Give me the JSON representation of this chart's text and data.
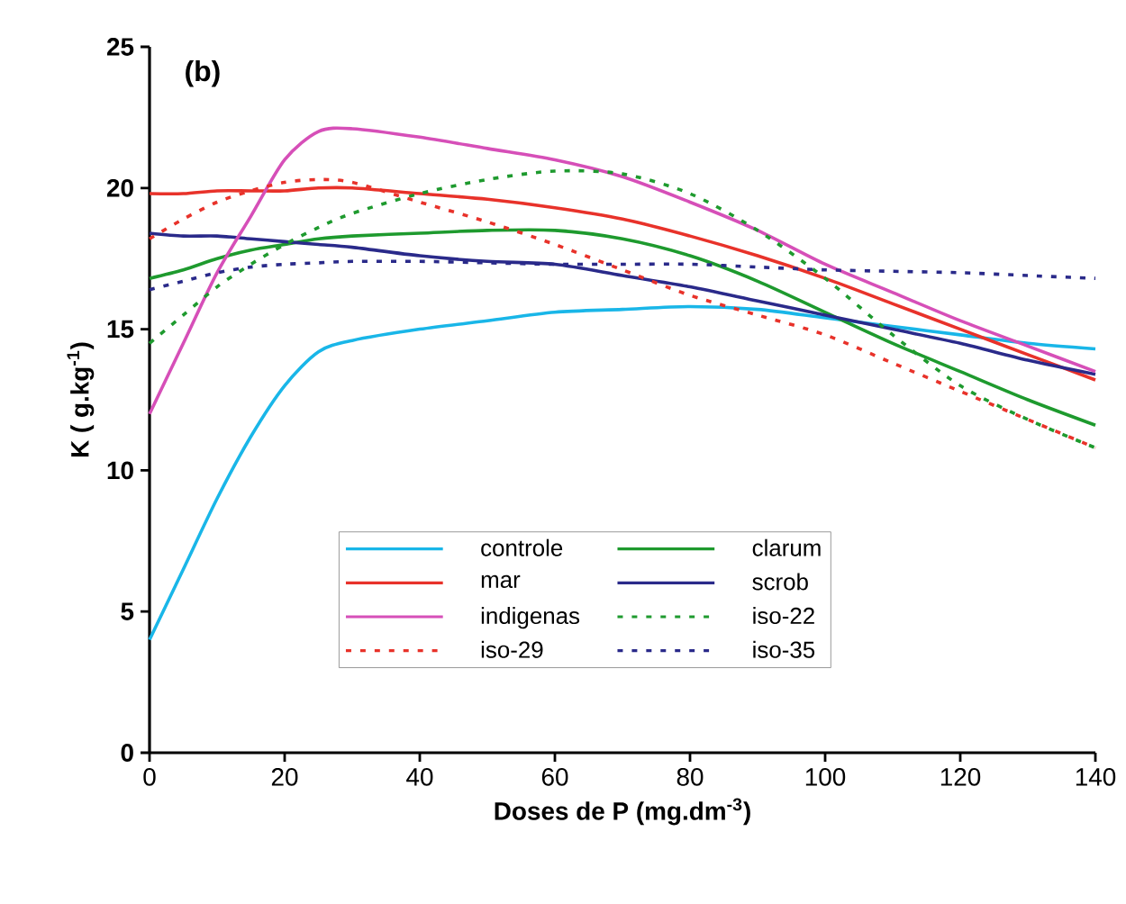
{
  "chart_data": {
    "type": "line",
    "xlabel": "Doses de P (mg.dm$^{-3}$)",
    "ylabel": "K ( g.kg$^{-1}$)",
    "annotations": [
      "(b)"
    ],
    "x": [
      0,
      5,
      10,
      15,
      20,
      25,
      30,
      40,
      50,
      60,
      70,
      80,
      90,
      100,
      110,
      120,
      130,
      140
    ],
    "series": [
      {
        "name": "controle",
        "color": "#19b6e8",
        "line_style": "solid",
        "values": [
          4,
          6.5,
          9,
          11.2,
          13,
          14.2,
          14.6,
          15,
          15.3,
          15.6,
          15.7,
          15.8,
          15.7,
          15.4,
          15.1,
          14.8,
          14.5,
          14.3
        ]
      },
      {
        "name": "clarum",
        "color": "#1e9a2e",
        "line_style": "solid",
        "values": [
          16.8,
          17.1,
          17.5,
          17.8,
          18,
          18.2,
          18.3,
          18.4,
          18.5,
          18.5,
          18.2,
          17.6,
          16.7,
          15.6,
          14.5,
          13.5,
          12.5,
          11.6
        ]
      },
      {
        "name": "mar",
        "color": "#e8322a",
        "line_style": "solid",
        "values": [
          19.8,
          19.8,
          19.9,
          19.9,
          19.9,
          20,
          20,
          19.8,
          19.6,
          19.3,
          18.9,
          18.3,
          17.6,
          16.8,
          15.9,
          15,
          14.1,
          13.2
        ]
      },
      {
        "name": "scrob",
        "color": "#2a2a8a",
        "line_style": "solid",
        "values": [
          18.4,
          18.3,
          18.3,
          18.2,
          18.1,
          18,
          17.9,
          17.6,
          17.4,
          17.3,
          16.9,
          16.5,
          16,
          15.5,
          15,
          14.5,
          13.9,
          13.4
        ]
      },
      {
        "name": "indigenas",
        "color": "#d64fb8",
        "line_style": "solid",
        "values": [
          12,
          14.5,
          17,
          19,
          21,
          22,
          22.1,
          21.8,
          21.4,
          21,
          20.4,
          19.5,
          18.5,
          17.3,
          16.3,
          15.3,
          14.4,
          13.5
        ]
      },
      {
        "name": "iso-22",
        "color": "#1e9a2e",
        "line_style": "dashed",
        "values": [
          14.5,
          15.5,
          16.5,
          17.3,
          18,
          18.6,
          19.1,
          19.8,
          20.3,
          20.6,
          20.5,
          19.8,
          18.5,
          16.8,
          14.8,
          13,
          11.8,
          10.8
        ]
      },
      {
        "name": "iso-29",
        "color": "#e8322a",
        "line_style": "dashed",
        "values": [
          18.2,
          18.9,
          19.5,
          19.9,
          20.2,
          20.3,
          20.2,
          19.5,
          18.8,
          18,
          17.1,
          16.2,
          15.5,
          14.8,
          13.8,
          12.8,
          11.8,
          10.8
        ]
      },
      {
        "name": "iso-35",
        "color": "#2a2a8a",
        "line_style": "dashed",
        "values": [
          16.4,
          16.7,
          17,
          17.2,
          17.3,
          17.35,
          17.4,
          17.4,
          17.35,
          17.3,
          17.3,
          17.3,
          17.2,
          17.1,
          17.05,
          17,
          16.9,
          16.8
        ]
      }
    ],
    "xlim": [
      0,
      140
    ],
    "xticks": [
      0,
      20,
      40,
      60,
      80,
      100,
      120,
      140
    ],
    "ylim": [
      0,
      25
    ],
    "yticks": [
      0,
      5,
      10,
      15,
      20,
      25
    ],
    "grid": false,
    "legend": "bottom",
    "marker": "none"
  }
}
